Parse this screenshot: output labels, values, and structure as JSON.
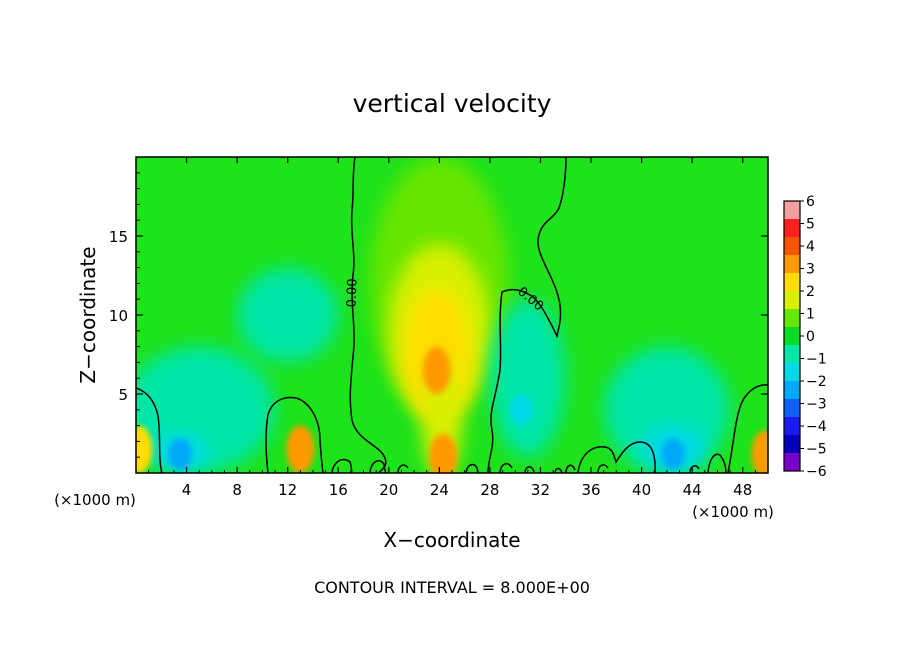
{
  "chart_data": {
    "type": "heatmap",
    "title": "vertical velocity",
    "xlabel": "X−coordinate",
    "ylabel": "Z−coordinate",
    "x_unit_left": "(×1000 m)",
    "x_unit_right": "(×1000 m)",
    "xlim": [
      0,
      50
    ],
    "ylim": [
      0,
      20
    ],
    "x_ticks": [
      4,
      8,
      12,
      16,
      20,
      24,
      28,
      32,
      36,
      40,
      44,
      48
    ],
    "y_ticks": [
      5,
      10,
      15
    ],
    "footer": "CONTOUR INTERVAL = 8.000E+00",
    "contour_label": "0.00",
    "contour_label_2": "0.00",
    "colorbar": {
      "min": -6,
      "max": 6,
      "ticks": [
        6,
        5,
        4,
        3,
        2,
        1,
        0,
        -1,
        -2,
        -3,
        -4,
        -5,
        -6
      ],
      "tick_labels": [
        "6",
        "5",
        "4",
        "3",
        "2",
        "1",
        "0",
        "−1",
        "−2",
        "−3",
        "−4",
        "−5",
        "−6"
      ],
      "colors": [
        "#f4a0a0",
        "#ff2020",
        "#ff5500",
        "#ff9900",
        "#ffdd00",
        "#d8f000",
        "#66e600",
        "#00dd20",
        "#00e6a8",
        "#00d8e8",
        "#00a8f8",
        "#1060ff",
        "#1a1aee",
        "#0000b8",
        "#7a00c8"
      ]
    },
    "features": [
      {
        "name": "central updraft core",
        "x": 23.8,
        "z": 6.5,
        "value": 3.4
      },
      {
        "name": "low-level updraft",
        "x": 24.3,
        "z": 1.0,
        "value": 3.0
      },
      {
        "name": "cell near x=13",
        "x": 13.0,
        "z": 1.5,
        "value": 3.1
      },
      {
        "name": "cell at left edge",
        "x": 0.2,
        "z": 1.5,
        "value": 2.7
      },
      {
        "name": "cell at right edge",
        "x": 49.8,
        "z": 1.2,
        "value": 3.0
      },
      {
        "name": "downdraft near x=4",
        "x": 3.5,
        "z": 1.2,
        "value": -2.0
      },
      {
        "name": "downdraft near x=42",
        "x": 42.5,
        "z": 1.2,
        "value": -2.3
      },
      {
        "name": "downdraft near x=30",
        "x": 30.5,
        "z": 4.0,
        "value": -1.2
      }
    ]
  }
}
